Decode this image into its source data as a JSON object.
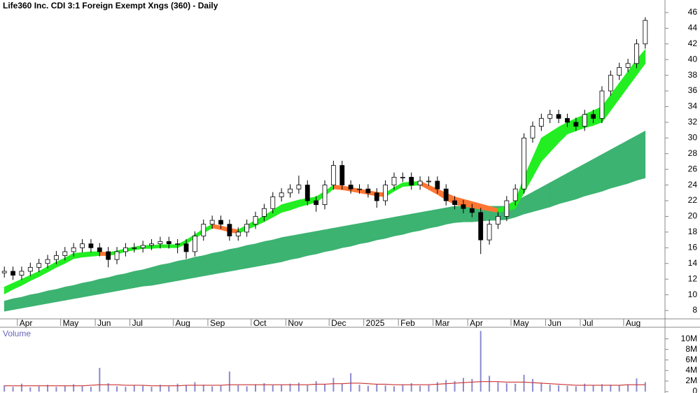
{
  "chart_data": [
    {
      "type": "candlestick",
      "title": "Life360 Inc. CDI 3:1 Foreign Exempt Xngs (360) - Daily",
      "categories": [
        null,
        null,
        "Apr",
        null,
        null,
        null,
        null,
        "May",
        null,
        null,
        null,
        "Jun",
        null,
        null,
        null,
        "Jul",
        null,
        null,
        null,
        null,
        "Aug",
        null,
        null,
        null,
        "Sep",
        null,
        null,
        null,
        null,
        "Oct",
        null,
        null,
        null,
        "Nov",
        null,
        null,
        null,
        null,
        "Dec",
        null,
        null,
        null,
        "2025",
        null,
        null,
        null,
        "Feb",
        null,
        null,
        null,
        "Mar",
        null,
        null,
        null,
        "Apr",
        null,
        null,
        null,
        null,
        "May",
        null,
        null,
        null,
        "Jun",
        null,
        null,
        null,
        "Jul",
        null,
        null,
        null,
        null,
        "Aug",
        null,
        null
      ],
      "open": [
        12.8,
        13,
        12.5,
        13,
        13.5,
        14,
        14.5,
        15,
        15.5,
        16,
        16.5,
        16,
        15.5,
        14.5,
        15.5,
        16,
        16,
        16.3,
        16.5,
        16.8,
        16.5,
        16.5,
        15.5,
        17.5,
        19,
        19.5,
        19,
        17.5,
        18,
        19,
        20,
        21,
        22.5,
        23,
        23.5,
        24,
        22,
        21.5,
        24,
        26.5,
        24,
        23.5,
        23.5,
        23,
        22,
        24,
        25,
        25,
        24,
        24.5,
        24.5,
        23.5,
        22,
        21.5,
        21,
        20.5,
        17,
        19,
        20,
        22,
        23.5,
        30,
        31.5,
        32.5,
        33,
        32.5,
        32,
        31.5,
        33,
        32.5,
        36,
        38,
        39,
        39.5,
        42
      ],
      "high": [
        13.6,
        13.6,
        13.6,
        14.1,
        14.6,
        15.1,
        15.6,
        16.1,
        16.6,
        17.1,
        17.1,
        16.6,
        16.1,
        16.1,
        16.6,
        16.6,
        16.9,
        17.1,
        17.4,
        17.4,
        17.1,
        17.1,
        18.1,
        19.6,
        20.1,
        20.1,
        19.6,
        18.6,
        19.6,
        20.6,
        21.6,
        23.1,
        23.6,
        24.1,
        25.2,
        24.6,
        22.6,
        24.6,
        27.1,
        27.1,
        24.6,
        24.1,
        24.1,
        23.6,
        24.6,
        25.6,
        25.6,
        25.6,
        25.1,
        25.1,
        25.1,
        24.1,
        22.6,
        22.1,
        21.6,
        21.1,
        19.6,
        20.6,
        22.6,
        24.1,
        30.6,
        32.1,
        33.1,
        33.6,
        33.6,
        33.1,
        32.6,
        33.6,
        33.6,
        36.6,
        38.6,
        39.6,
        40.1,
        42.6,
        45.4
      ],
      "low": [
        12.2,
        11.9,
        11.9,
        12.4,
        12.9,
        13.4,
        13.9,
        14.4,
        14.9,
        15.4,
        15.4,
        14.9,
        13.5,
        13.9,
        14.9,
        15.4,
        15.4,
        15.7,
        15.9,
        15.9,
        15.3,
        14.6,
        14.9,
        16.9,
        18.4,
        18.4,
        16.9,
        16.9,
        17.4,
        18.4,
        19.4,
        20.4,
        21.9,
        22.4,
        22.9,
        21.4,
        20.6,
        20.9,
        23.4,
        23.4,
        22.9,
        22.9,
        22.4,
        21.1,
        21.4,
        23.4,
        24.4,
        23.4,
        23.4,
        23.9,
        22.9,
        21.4,
        20.9,
        20.4,
        19.9,
        15.2,
        16.4,
        18.4,
        19.4,
        21.4,
        22.9,
        29.4,
        30.9,
        31.9,
        31.9,
        31.4,
        30.9,
        30.9,
        31.9,
        31.9,
        35.4,
        37.4,
        38.4,
        38.9,
        41.4
      ],
      "close": [
        13,
        12.5,
        13,
        13.5,
        14,
        14.5,
        15,
        15.5,
        16,
        16.5,
        16,
        15.5,
        14.5,
        15.5,
        16,
        16,
        16.3,
        16.5,
        16.8,
        16.5,
        16.5,
        15.5,
        17.5,
        19,
        19.5,
        19,
        17.5,
        18,
        19,
        20,
        21,
        22.5,
        23,
        23.5,
        24,
        22,
        21.5,
        24,
        26.5,
        24,
        23.5,
        23.5,
        23,
        22,
        24,
        25,
        25,
        24,
        24.5,
        24.5,
        23.5,
        22,
        21.5,
        21,
        20.5,
        17,
        19,
        20,
        22,
        23.5,
        30,
        31.5,
        32.5,
        33,
        32.5,
        32,
        31.5,
        33,
        32.5,
        36,
        38,
        39,
        39.5,
        42,
        45
      ],
      "up_color": "#ffffff",
      "down_color": "#000000",
      "bands": [
        {
          "lower": [
            7.9,
            8.1,
            8.3,
            8.5,
            8.7,
            8.9,
            9.1,
            9.3,
            9.5,
            9.7,
            9.9,
            10.1,
            10.3,
            10.5,
            10.7,
            10.9,
            11.1,
            11.2,
            11.4,
            11.6,
            11.8,
            12.0,
            12.2,
            12.4,
            12.6,
            12.8,
            13.0,
            13.2,
            13.4,
            13.6,
            13.8,
            14.0,
            14.2,
            14.5,
            14.7,
            15.0,
            15.2,
            15.5,
            15.7,
            16.0,
            16.2,
            16.5,
            16.7,
            17.0,
            17.2,
            17.5,
            17.7,
            18.0,
            18.2,
            18.5,
            18.7,
            19.0,
            19.2,
            19.3,
            19.3,
            19.4,
            19.5,
            19.5,
            19.6,
            19.9,
            20.3,
            20.6,
            20.9,
            21.2,
            21.6,
            21.9,
            22.2,
            22.6,
            22.9,
            23.2,
            23.6,
            23.9,
            24.2,
            24.6,
            24.9
          ],
          "upper": [
            9.2,
            9.5,
            9.7,
            10.0,
            10.2,
            10.5,
            10.7,
            11.0,
            11.2,
            11.5,
            11.7,
            12.0,
            12.2,
            12.5,
            12.7,
            13.0,
            13.2,
            13.5,
            13.8,
            14.0,
            14.3,
            14.5,
            14.8,
            15.0,
            15.3,
            15.5,
            15.8,
            16.0,
            16.3,
            16.5,
            16.8,
            17.0,
            17.3,
            17.5,
            17.7,
            17.9,
            18.1,
            18.3,
            18.5,
            18.7,
            18.9,
            19.1,
            19.3,
            19.5,
            19.7,
            19.9,
            20.1,
            20.3,
            20.5,
            20.7,
            20.9,
            21.1,
            21.3,
            21.3,
            21.3,
            21.3,
            21.3,
            21.3,
            21.3,
            21.9,
            22.5,
            23.1,
            23.7,
            24.3,
            24.9,
            25.5,
            26.1,
            26.7,
            27.3,
            27.9,
            28.5,
            29.1,
            29.7,
            30.3,
            30.9
          ],
          "up_color": "#3cb371",
          "down_color": "#3cb371"
        },
        {
          "lower": [
            10.1,
            10.7,
            11.2,
            11.8,
            12.3,
            12.9,
            13.5,
            14.0,
            14.6,
            14.8,
            14.9,
            15.0,
            15.0,
            15.2,
            15.5,
            15.7,
            15.9,
            15.9,
            16.0,
            16.0,
            16.0,
            16.5,
            17.2,
            17.9,
            18.5,
            18.3,
            18.0,
            17.8,
            18.3,
            18.8,
            19.3,
            19.9,
            20.5,
            20.8,
            21.2,
            21.5,
            21.8,
            22.6,
            23.5,
            23.4,
            23.2,
            23.0,
            22.8,
            22.6,
            22.5,
            23.2,
            23.8,
            23.9,
            24.0,
            23.4,
            22.8,
            22.1,
            21.5,
            21.3,
            21.1,
            20.9,
            20.7,
            20.5,
            20.7,
            21.0,
            23.0,
            25.0,
            27.0,
            28.2,
            29.4,
            30.5,
            30.9,
            31.3,
            31.6,
            32.0,
            33.5,
            35.0,
            36.5,
            38.0,
            39.5
          ],
          "upper": [
            11.0,
            11.5,
            12.0,
            12.5,
            13.0,
            13.6,
            14.2,
            14.7,
            15.3,
            15.4,
            15.5,
            15.5,
            15.4,
            15.6,
            15.9,
            16.1,
            16.3,
            16.3,
            16.4,
            16.4,
            16.4,
            17.0,
            17.7,
            18.4,
            19.0,
            18.8,
            18.5,
            18.3,
            18.9,
            19.5,
            20.1,
            20.8,
            21.5,
            21.8,
            22.1,
            22.3,
            22.5,
            23.2,
            24.0,
            23.9,
            23.7,
            23.5,
            23.3,
            23.1,
            23.0,
            23.7,
            24.3,
            24.4,
            24.5,
            24.0,
            23.5,
            23.0,
            22.5,
            22.2,
            21.9,
            21.6,
            21.3,
            21.0,
            21.4,
            22.0,
            25.0,
            27.5,
            30.0,
            30.7,
            31.4,
            32.0,
            32.5,
            33.0,
            33.5,
            34.0,
            35.5,
            37.0,
            38.5,
            40.0,
            41.3
          ],
          "up_color": "#22ee22",
          "down_color": "#ff7733"
        }
      ],
      "ylim": [
        6.93,
        47.6
      ],
      "yticks": [
        8,
        10,
        12,
        14,
        16,
        18,
        20,
        22,
        24,
        26,
        28,
        30,
        32,
        34,
        36,
        38,
        40,
        42,
        44,
        46
      ]
    },
    {
      "type": "bar",
      "title": "Volume",
      "values": [
        1200000,
        900000,
        1500000,
        800000,
        1000000,
        1300000,
        900000,
        1100000,
        1400000,
        1000000,
        900000,
        4500000,
        1600000,
        1000000,
        900000,
        1200000,
        1100000,
        900000,
        1300000,
        1000000,
        1500000,
        1200000,
        1800000,
        1300000,
        1000000,
        1100000,
        3800000,
        1200000,
        1000000,
        1400000,
        1600000,
        1200000,
        1300000,
        1500000,
        1700000,
        1200000,
        2000000,
        1400000,
        2600000,
        1500000,
        3500000,
        1300000,
        1100000,
        1400000,
        1200000,
        1000000,
        1300000,
        1600000,
        1100000,
        1200000,
        1800000,
        2200000,
        2000000,
        2600000,
        2400000,
        11500000,
        3000000,
        1800000,
        1600000,
        1500000,
        3200000,
        2400000,
        1700000,
        1300000,
        1200000,
        1100000,
        1000000,
        1500000,
        1200000,
        1400000,
        1300000,
        1200000,
        1400000,
        2500000,
        1800000
      ],
      "color": "#8a8ad0",
      "average": [
        1100000,
        1100000,
        1100000,
        1100000,
        1100000,
        1100000,
        1100000,
        1100000,
        1100000,
        1100000,
        1200000,
        1300000,
        1300000,
        1300000,
        1200000,
        1200000,
        1200000,
        1100000,
        1100000,
        1100000,
        1100000,
        1200000,
        1200000,
        1200000,
        1200000,
        1200000,
        1300000,
        1300000,
        1300000,
        1300000,
        1300000,
        1300000,
        1300000,
        1300000,
        1300000,
        1300000,
        1400000,
        1400000,
        1500000,
        1500000,
        1600000,
        1600000,
        1500000,
        1400000,
        1400000,
        1300000,
        1300000,
        1300000,
        1300000,
        1300000,
        1400000,
        1500000,
        1600000,
        1700000,
        1800000,
        1900000,
        1900000,
        1900000,
        1800000,
        1800000,
        1800000,
        1700000,
        1600000,
        1500000,
        1400000,
        1300000,
        1200000,
        1200000,
        1200000,
        1200000,
        1200000,
        1200000,
        1300000,
        1300000,
        1300000
      ],
      "average_color": "#cc3333",
      "ylim": [
        0,
        12200000
      ],
      "yticks": [
        0,
        {
          "value": 2000000,
          "label": "2M"
        },
        {
          "value": 4000000,
          "label": "4M"
        },
        {
          "value": 6000000,
          "label": "6M"
        },
        {
          "value": 8000000,
          "label": "8M"
        },
        {
          "value": 10000000,
          "label": "10M"
        }
      ]
    }
  ]
}
